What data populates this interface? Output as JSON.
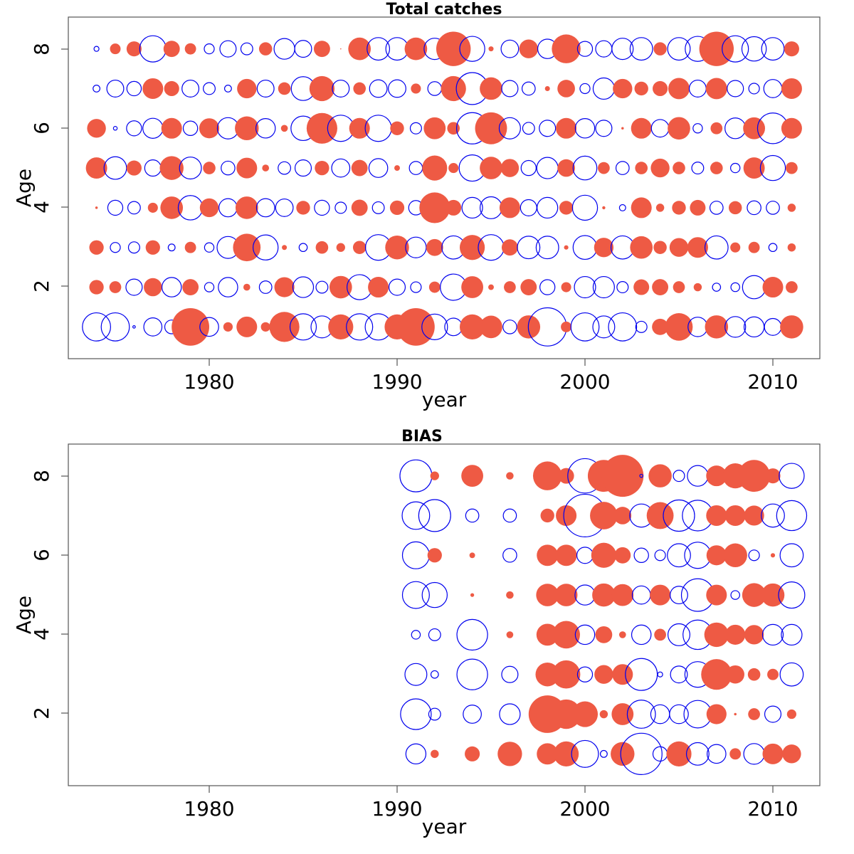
{
  "colors": {
    "positive": "#ee5a44",
    "negative": "#0000ee",
    "frame": "#555555"
  },
  "chart_data": [
    {
      "type": "scatter",
      "subtype": "bubble-residuals",
      "title": "Total catches",
      "xlabel": "year",
      "ylabel": "Age",
      "xlim": [
        1972.5,
        2012.5
      ],
      "ylim": [
        0.2,
        8.8
      ],
      "xticks": [
        1980,
        1990,
        2000,
        2010
      ],
      "yticks": [
        2,
        4,
        6,
        8
      ],
      "sign_encoding": "filled red = 1, open blue = -1",
      "years": [
        1974,
        1975,
        1976,
        1977,
        1978,
        1979,
        1980,
        1981,
        1982,
        1983,
        1984,
        1985,
        1986,
        1987,
        1988,
        1989,
        1990,
        1991,
        1992,
        1993,
        1994,
        1995,
        1996,
        1997,
        1998,
        1999,
        2000,
        2001,
        2002,
        2003,
        2004,
        2005,
        2006,
        2007,
        2008,
        2009,
        2010,
        2011
      ],
      "series": [
        {
          "age": 8,
          "magnitude": [
            0.16,
            0.34,
            0.48,
            0.84,
            0.52,
            0.36,
            0.32,
            0.52,
            0.38,
            0.42,
            0.66,
            0.54,
            0.52,
            0.02,
            0.72,
            0.72,
            0.72,
            0.72,
            0.68,
            1.1,
            0.8,
            0.16,
            0.56,
            0.6,
            0.62,
            0.92,
            0.48,
            0.52,
            0.68,
            0.72,
            0.42,
            0.72,
            0.8,
            1.1,
            0.84,
            0.78,
            0.72,
            0.48
          ],
          "sign": [
            -1,
            1,
            1,
            -1,
            1,
            1,
            -1,
            -1,
            -1,
            1,
            -1,
            -1,
            1,
            1,
            1,
            -1,
            -1,
            1,
            -1,
            1,
            -1,
            1,
            -1,
            1,
            -1,
            1,
            -1,
            -1,
            -1,
            -1,
            1,
            -1,
            -1,
            1,
            -1,
            -1,
            -1,
            1
          ]
        },
        {
          "age": 7,
          "magnitude": [
            0.22,
            0.54,
            0.46,
            0.66,
            0.48,
            0.54,
            0.38,
            0.22,
            0.62,
            0.54,
            0.4,
            0.76,
            0.8,
            0.54,
            0.4,
            0.56,
            0.56,
            0.32,
            0.44,
            0.8,
            1.02,
            0.72,
            0.52,
            0.42,
            0.16,
            0.56,
            0.32,
            0.68,
            0.62,
            0.44,
            0.48,
            0.68,
            0.54,
            0.68,
            0.52,
            0.34,
            0.58,
            0.66
          ],
          "sign": [
            -1,
            -1,
            -1,
            1,
            1,
            -1,
            -1,
            -1,
            1,
            -1,
            1,
            -1,
            1,
            -1,
            1,
            -1,
            -1,
            1,
            -1,
            1,
            -1,
            1,
            -1,
            -1,
            1,
            1,
            -1,
            -1,
            1,
            1,
            1,
            1,
            -1,
            1,
            -1,
            -1,
            -1,
            1
          ]
        },
        {
          "age": 6,
          "magnitude": [
            0.6,
            0.12,
            0.48,
            0.64,
            0.66,
            0.46,
            0.64,
            0.68,
            0.76,
            0.62,
            0.22,
            0.78,
            0.98,
            0.84,
            0.66,
            0.84,
            0.44,
            0.36,
            0.7,
            0.4,
            1.0,
            1.02,
            0.68,
            0.38,
            0.52,
            0.66,
            0.62,
            0.52,
            0.08,
            0.66,
            0.56,
            0.72,
            0.3,
            0.38,
            0.66,
            0.7,
            0.98,
            0.66
          ],
          "sign": [
            1,
            -1,
            -1,
            -1,
            1,
            -1,
            1,
            -1,
            1,
            -1,
            1,
            -1,
            1,
            -1,
            1,
            -1,
            1,
            -1,
            1,
            1,
            -1,
            1,
            -1,
            -1,
            -1,
            1,
            -1,
            -1,
            1,
            1,
            -1,
            1,
            -1,
            1,
            -1,
            1,
            -1,
            1
          ]
        },
        {
          "age": 5,
          "magnitude": [
            0.68,
            0.72,
            0.48,
            0.52,
            0.76,
            0.7,
            0.4,
            0.44,
            0.66,
            0.22,
            0.4,
            0.52,
            0.46,
            0.58,
            0.52,
            0.6,
            0.18,
            0.42,
            0.8,
            0.32,
            0.84,
            0.72,
            0.58,
            0.48,
            0.68,
            0.56,
            0.76,
            0.38,
            0.42,
            0.4,
            0.6,
            0.4,
            0.38,
            0.4,
            0.3,
            0.68,
            0.8,
            0.38
          ],
          "sign": [
            1,
            -1,
            1,
            -1,
            1,
            -1,
            1,
            -1,
            1,
            1,
            -1,
            -1,
            1,
            -1,
            1,
            -1,
            1,
            -1,
            1,
            1,
            -1,
            1,
            1,
            -1,
            -1,
            1,
            -1,
            1,
            -1,
            1,
            1,
            1,
            -1,
            1,
            -1,
            1,
            -1,
            1
          ]
        },
        {
          "age": 4,
          "magnitude": [
            0.08,
            0.48,
            0.4,
            0.32,
            0.72,
            0.78,
            0.6,
            0.58,
            0.72,
            0.58,
            0.56,
            0.44,
            0.48,
            0.36,
            0.52,
            0.38,
            0.46,
            0.46,
            0.98,
            0.5,
            0.66,
            0.7,
            0.66,
            0.52,
            0.66,
            0.44,
            0.8,
            0.1,
            0.2,
            0.66,
            0.26,
            0.44,
            0.5,
            0.42,
            0.42,
            0.44,
            0.42,
            0.26
          ],
          "sign": [
            1,
            -1,
            -1,
            1,
            1,
            -1,
            1,
            -1,
            1,
            -1,
            -1,
            1,
            -1,
            -1,
            1,
            -1,
            1,
            -1,
            1,
            1,
            -1,
            -1,
            1,
            -1,
            -1,
            1,
            -1,
            1,
            -1,
            1,
            1,
            1,
            1,
            -1,
            1,
            -1,
            -1,
            1
          ]
        },
        {
          "age": 3,
          "magnitude": [
            0.46,
            0.32,
            0.36,
            0.46,
            0.22,
            0.36,
            0.3,
            0.7,
            0.88,
            0.8,
            0.16,
            0.26,
            0.4,
            0.28,
            0.42,
            0.82,
            0.76,
            0.66,
            0.54,
            0.74,
            0.8,
            0.82,
            0.52,
            0.72,
            0.72,
            0.14,
            0.76,
            0.62,
            0.74,
            0.72,
            0.42,
            0.6,
            0.66,
            0.74,
            0.32,
            0.36,
            0.26,
            0.26
          ],
          "sign": [
            1,
            -1,
            -1,
            1,
            -1,
            1,
            -1,
            -1,
            1,
            -1,
            1,
            -1,
            1,
            1,
            1,
            -1,
            1,
            -1,
            1,
            -1,
            1,
            -1,
            1,
            -1,
            -1,
            1,
            -1,
            1,
            -1,
            1,
            1,
            1,
            1,
            -1,
            1,
            1,
            -1,
            1
          ]
        },
        {
          "age": 2,
          "magnitude": [
            0.46,
            0.38,
            0.52,
            0.58,
            0.62,
            0.52,
            0.3,
            0.62,
            0.22,
            0.4,
            0.64,
            0.66,
            0.38,
            0.72,
            0.8,
            0.66,
            0.52,
            0.34,
            0.36,
            0.84,
            0.7,
            0.18,
            0.38,
            0.52,
            0.48,
            0.32,
            0.68,
            0.68,
            0.36,
            0.5,
            0.52,
            0.38,
            0.26,
            0.26,
            0.28,
            0.74,
            0.66,
            0.38
          ],
          "sign": [
            1,
            1,
            -1,
            1,
            -1,
            1,
            -1,
            -1,
            1,
            -1,
            1,
            -1,
            -1,
            1,
            -1,
            1,
            -1,
            -1,
            1,
            -1,
            1,
            1,
            1,
            1,
            -1,
            1,
            -1,
            -1,
            -1,
            1,
            1,
            1,
            1,
            -1,
            -1,
            -1,
            1,
            1
          ]
        },
        {
          "age": 1,
          "magnitude": [
            0.9,
            0.9,
            0.08,
            0.58,
            0.44,
            1.2,
            0.6,
            0.3,
            0.66,
            0.3,
            0.96,
            0.84,
            0.7,
            0.8,
            0.84,
            0.84,
            0.8,
            1.2,
            0.82,
            0.56,
            0.8,
            0.72,
            0.44,
            0.74,
            1.22,
            0.34,
            0.9,
            0.7,
            0.9,
            0.36,
            0.52,
            0.88,
            0.62,
            0.74,
            0.66,
            0.64,
            0.54,
            0.74
          ],
          "sign": [
            -1,
            -1,
            -1,
            -1,
            -1,
            1,
            -1,
            1,
            1,
            1,
            1,
            -1,
            -1,
            1,
            -1,
            -1,
            1,
            1,
            -1,
            -1,
            1,
            1,
            -1,
            1,
            -1,
            1,
            -1,
            -1,
            -1,
            -1,
            1,
            1,
            -1,
            1,
            -1,
            -1,
            -1,
            1
          ]
        }
      ]
    },
    {
      "type": "scatter",
      "subtype": "bubble-residuals",
      "title": "BIAS",
      "xlabel": "year",
      "ylabel": "Age",
      "xlim": [
        1972.5,
        2012.5
      ],
      "ylim": [
        0.2,
        8.8
      ],
      "xticks": [
        1980,
        1990,
        2000,
        2010
      ],
      "yticks": [
        2,
        4,
        6,
        8
      ],
      "sign_encoding": "filled red = 1, open blue = -1",
      "years": [
        1991,
        1992,
        1994,
        1996,
        1998,
        1999,
        2000,
        2001,
        2002,
        2003,
        2004,
        2005,
        2006,
        2007,
        2008,
        2009,
        2010,
        2011
      ],
      "series": [
        {
          "age": 8,
          "magnitude": [
            1.02,
            0.28,
            0.7,
            0.24,
            0.92,
            0.5,
            1.1,
            1.02,
            1.34,
            0.1,
            0.74,
            0.36,
            0.66,
            0.66,
            0.8,
            1.02,
            0.48,
            0.8
          ],
          "sign": [
            -1,
            1,
            1,
            1,
            1,
            1,
            -1,
            1,
            1,
            -1,
            1,
            -1,
            -1,
            1,
            1,
            1,
            1,
            -1
          ]
        },
        {
          "age": 7,
          "magnitude": [
            0.88,
            1.02,
            0.42,
            0.42,
            0.44,
            0.66,
            1.36,
            0.88,
            0.56,
            0.74,
            0.86,
            1.0,
            0.98,
            0.66,
            0.66,
            0.64,
            0.74,
            0.96
          ],
          "sign": [
            -1,
            -1,
            -1,
            -1,
            1,
            1,
            -1,
            1,
            1,
            -1,
            1,
            -1,
            -1,
            1,
            1,
            1,
            -1,
            -1
          ]
        },
        {
          "age": 6,
          "magnitude": [
            0.86,
            0.46,
            0.18,
            0.44,
            0.68,
            0.68,
            0.52,
            0.8,
            0.52,
            0.46,
            0.34,
            0.74,
            0.84,
            0.64,
            0.76,
            0.34,
            0.14,
            0.74
          ],
          "sign": [
            -1,
            1,
            1,
            -1,
            1,
            1,
            -1,
            1,
            1,
            -1,
            -1,
            -1,
            -1,
            1,
            1,
            -1,
            1,
            -1
          ]
        },
        {
          "age": 5,
          "magnitude": [
            0.86,
            0.8,
            0.12,
            0.24,
            0.72,
            0.72,
            0.64,
            0.74,
            0.7,
            0.58,
            0.66,
            0.56,
            1.04,
            0.66,
            0.28,
            0.76,
            0.74,
            0.84
          ],
          "sign": [
            -1,
            -1,
            1,
            1,
            1,
            1,
            -1,
            1,
            1,
            -1,
            1,
            -1,
            -1,
            1,
            -1,
            1,
            1,
            -1
          ]
        },
        {
          "age": 4,
          "magnitude": [
            0.28,
            0.38,
            0.98,
            0.22,
            0.7,
            0.88,
            0.62,
            0.54,
            0.22,
            0.62,
            0.38,
            0.7,
            0.94,
            0.78,
            0.64,
            0.62,
            0.66,
            0.66
          ],
          "sign": [
            -1,
            -1,
            -1,
            1,
            1,
            1,
            -1,
            1,
            1,
            -1,
            1,
            -1,
            -1,
            1,
            1,
            1,
            -1,
            -1
          ]
        },
        {
          "age": 3,
          "magnitude": [
            0.7,
            0.24,
            0.98,
            0.52,
            0.76,
            0.9,
            0.48,
            0.6,
            0.66,
            1.02,
            0.16,
            0.54,
            0.82,
            0.98,
            0.58,
            0.4,
            0.36,
            0.74
          ],
          "sign": [
            -1,
            -1,
            -1,
            -1,
            1,
            1,
            -1,
            1,
            1,
            -1,
            -1,
            -1,
            -1,
            1,
            1,
            1,
            1,
            -1
          ]
        },
        {
          "age": 2,
          "magnitude": [
            0.98,
            0.38,
            0.58,
            0.66,
            1.2,
            0.94,
            0.82,
            0.26,
            0.7,
            0.9,
            0.6,
            0.6,
            0.88,
            0.64,
            0.08,
            0.38,
            0.52,
            0.3
          ],
          "sign": [
            -1,
            -1,
            -1,
            -1,
            1,
            1,
            1,
            1,
            1,
            -1,
            -1,
            -1,
            -1,
            1,
            1,
            1,
            -1,
            1
          ]
        },
        {
          "age": 1,
          "magnitude": [
            0.64,
            0.26,
            0.48,
            0.78,
            0.68,
            0.8,
            0.86,
            0.22,
            0.76,
            1.32,
            0.46,
            0.8,
            0.72,
            0.6,
            0.36,
            0.66,
            0.66,
            0.6
          ],
          "sign": [
            -1,
            1,
            1,
            1,
            1,
            1,
            -1,
            -1,
            1,
            -1,
            -1,
            1,
            -1,
            -1,
            1,
            -1,
            1,
            1
          ]
        }
      ]
    }
  ]
}
